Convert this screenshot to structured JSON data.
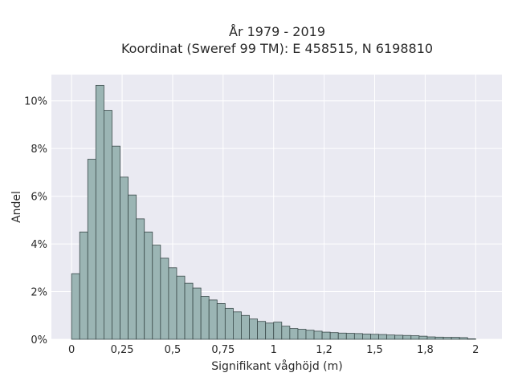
{
  "chart_data": {
    "type": "bar",
    "title": "År 1979 - 2019",
    "subtitle": "Koordinat (Sweref 99 TM): E 458515, N 6198810",
    "xlabel": "Signifikant våghöjd (m)",
    "ylabel": "Andel",
    "xlim": [
      -0.1,
      2.13
    ],
    "ylim": [
      0,
      11.1
    ],
    "bin_width": 0.04,
    "bin_start": 0.0,
    "values": [
      2.75,
      4.5,
      7.55,
      10.65,
      9.6,
      8.1,
      6.8,
      6.05,
      5.05,
      4.5,
      3.95,
      3.4,
      3.0,
      2.65,
      2.35,
      2.15,
      1.8,
      1.65,
      1.5,
      1.3,
      1.15,
      1.0,
      0.85,
      0.75,
      0.68,
      0.72,
      0.55,
      0.45,
      0.42,
      0.38,
      0.34,
      0.3,
      0.28,
      0.26,
      0.25,
      0.24,
      0.22,
      0.21,
      0.2,
      0.18,
      0.17,
      0.16,
      0.15,
      0.13,
      0.1,
      0.09,
      0.08,
      0.08,
      0.07,
      0.02
    ],
    "x_ticks": [
      {
        "value": 0,
        "label": "0"
      },
      {
        "value": 0.25,
        "label": "0,25"
      },
      {
        "value": 0.5,
        "label": "0,5"
      },
      {
        "value": 0.75,
        "label": "0,75"
      },
      {
        "value": 1,
        "label": "1"
      },
      {
        "value": 1.25,
        "label": "1,2"
      },
      {
        "value": 1.5,
        "label": "1,5"
      },
      {
        "value": 1.75,
        "label": "1,8"
      },
      {
        "value": 2,
        "label": "2"
      }
    ],
    "y_ticks": [
      {
        "value": 0,
        "label": "0%"
      },
      {
        "value": 2,
        "label": "2%"
      },
      {
        "value": 4,
        "label": "4%"
      },
      {
        "value": 6,
        "label": "6%"
      },
      {
        "value": 8,
        "label": "8%"
      },
      {
        "value": 10,
        "label": "10%"
      }
    ],
    "grid": true,
    "colors": {
      "background": "#eaeaf2",
      "bar_fill": "#9bb5b4",
      "bar_edge": "#3a4a4a",
      "grid": "#ffffff"
    }
  }
}
